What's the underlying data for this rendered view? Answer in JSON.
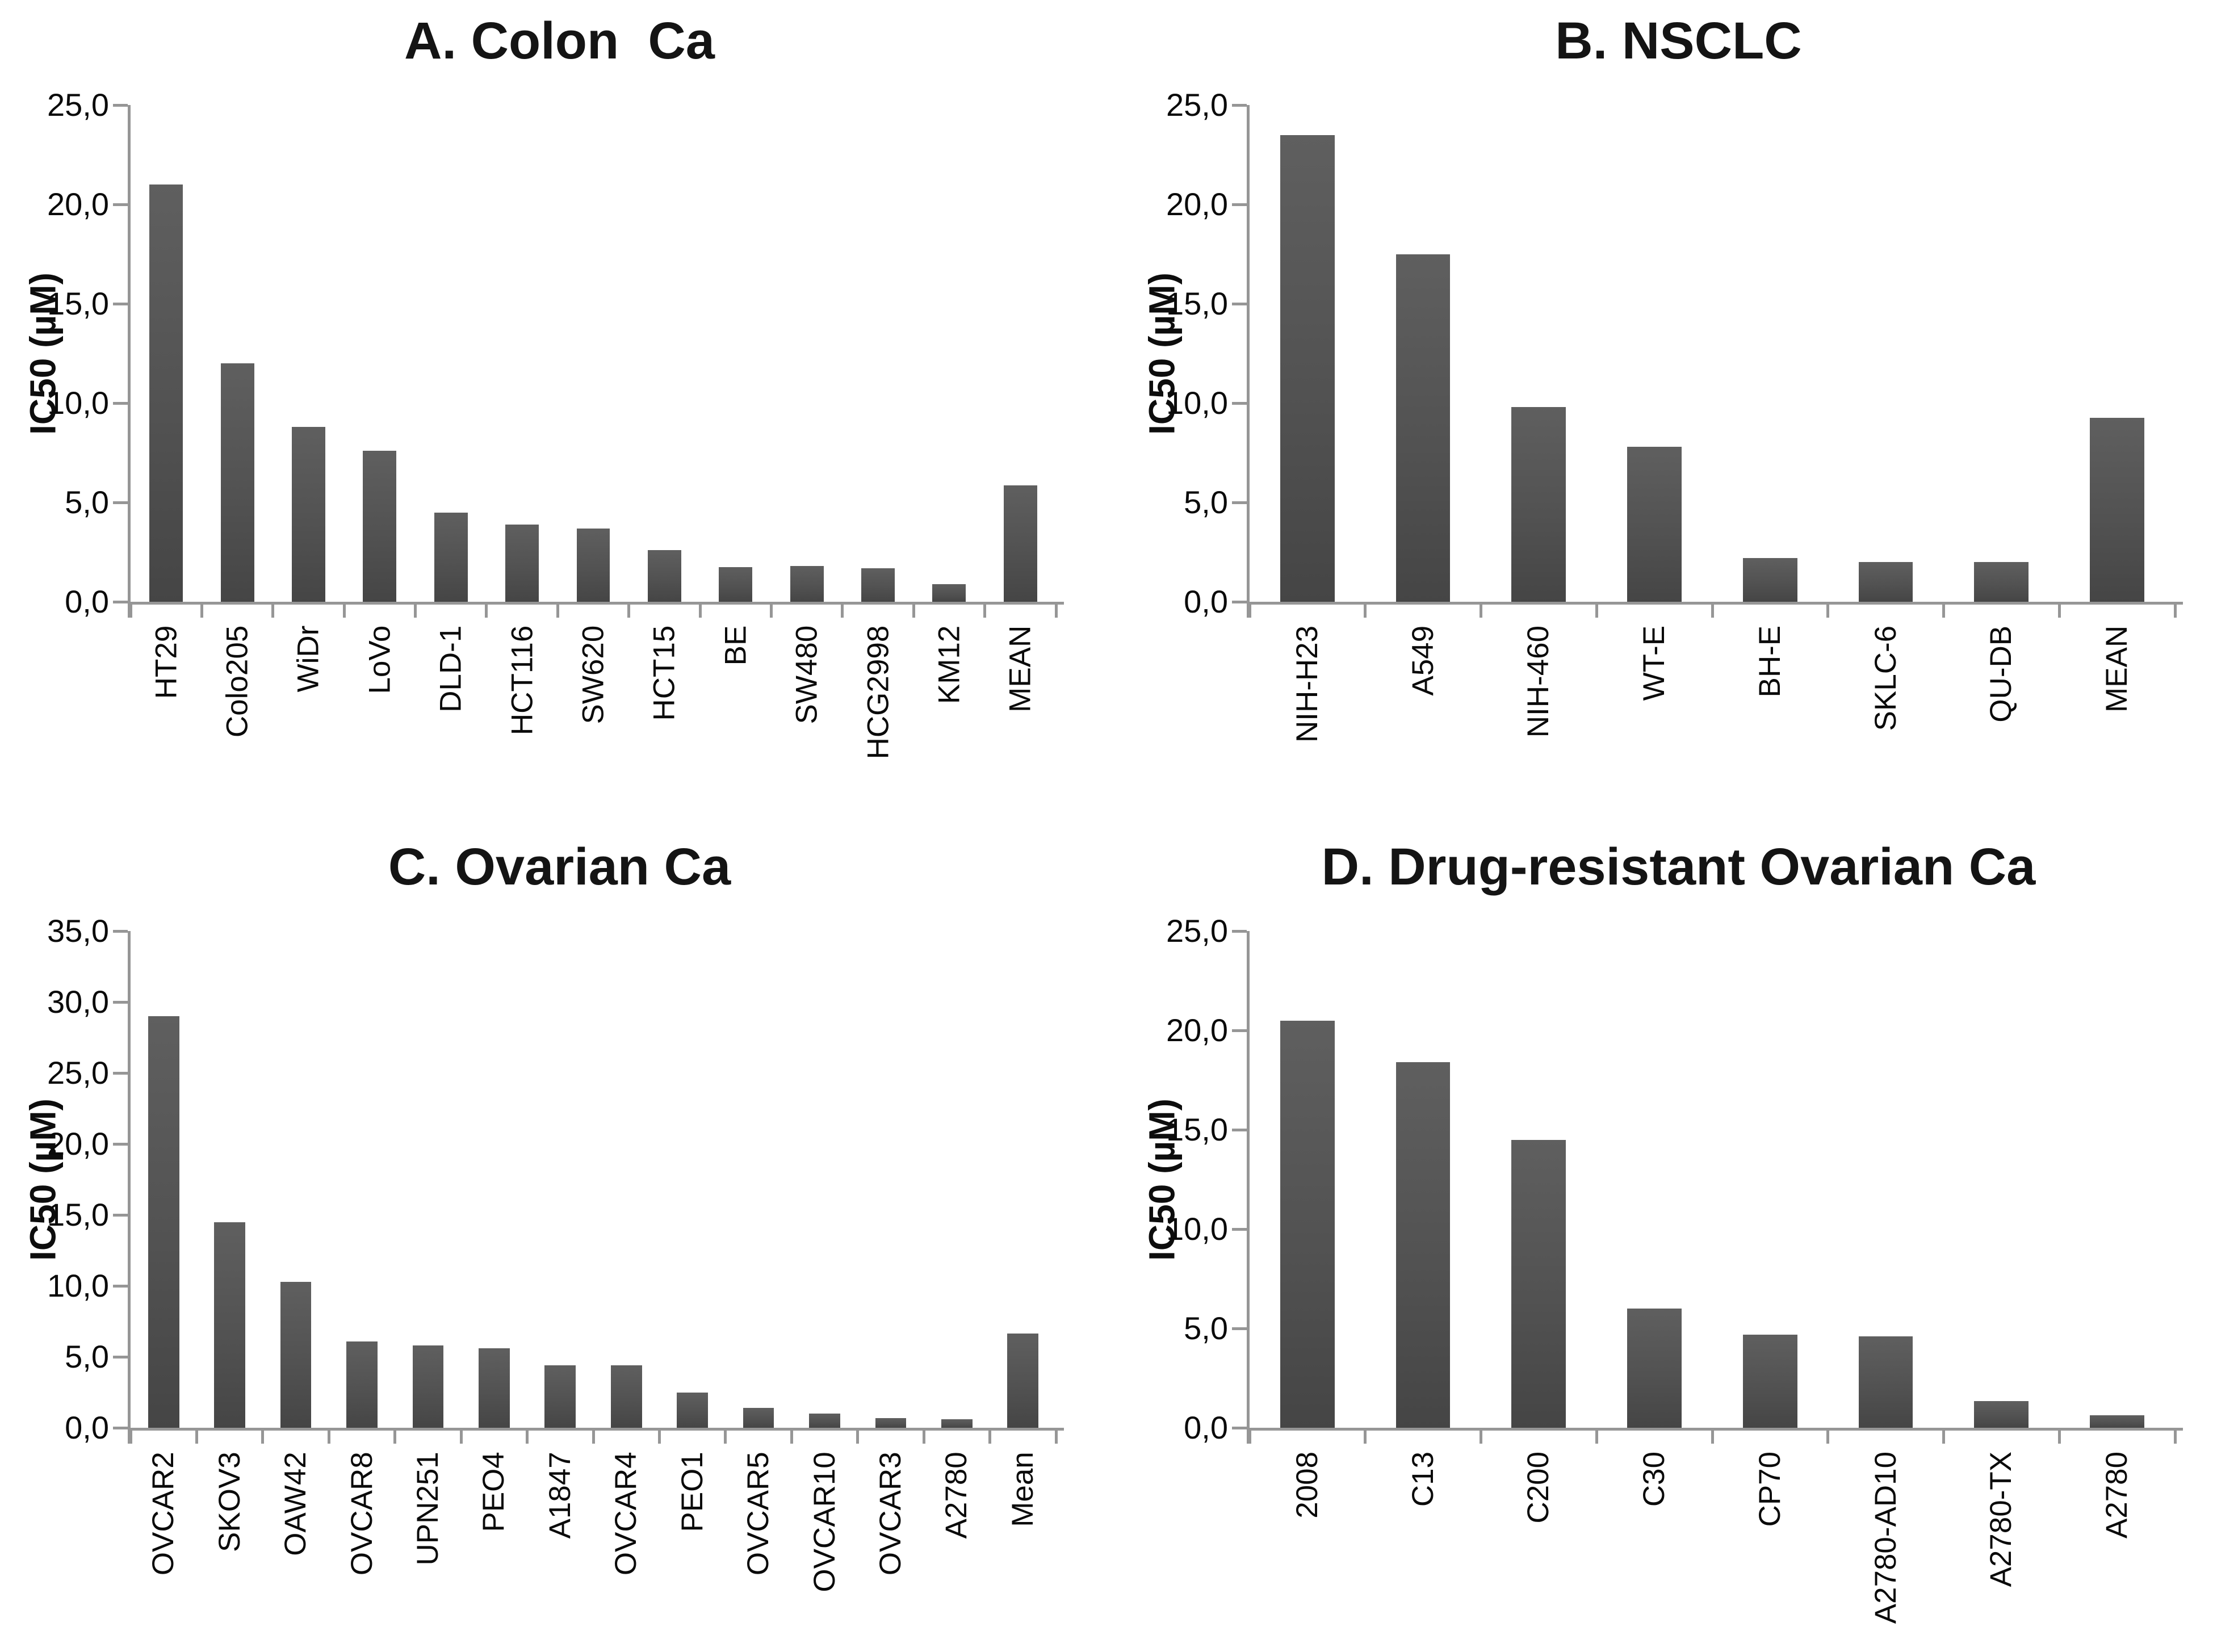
{
  "figure": {
    "background": "#ffffff",
    "bar_color_top": "#5f5f5f",
    "bar_color_bottom": "#454545",
    "axis_color": "#969696",
    "text_color": "#0d0d0d",
    "decimal_separator": ","
  },
  "chart_data": [
    {
      "type": "bar",
      "panel": "A",
      "title": "A. Colon  Ca",
      "ylabel": "IC50 (µM)",
      "xlabel": "",
      "ylim": [
        0,
        25
      ],
      "ytick_step": 5,
      "yticks": [
        "0,0",
        "5,0",
        "10,0",
        "15,0",
        "20,0",
        "25,0"
      ],
      "grid": false,
      "legend": null,
      "categories": [
        "HT29",
        "Colo205",
        "WiDr",
        "LoVo",
        "DLD-1",
        "HCT116",
        "SW620",
        "HCT15",
        "BE",
        "SW480",
        "HCG2998",
        "KM12",
        "MEAN"
      ],
      "values": [
        21.0,
        12.0,
        8.8,
        7.6,
        4.5,
        3.9,
        3.7,
        2.6,
        1.75,
        1.8,
        1.7,
        0.9,
        5.85
      ]
    },
    {
      "type": "bar",
      "panel": "B",
      "title": "B. NSCLC",
      "ylabel": "IC50 (µM)",
      "xlabel": "",
      "ylim": [
        0,
        25
      ],
      "ytick_step": 5,
      "yticks": [
        "0,0",
        "5,0",
        "10,0",
        "15,0",
        "20,0",
        "25,0"
      ],
      "grid": false,
      "legend": null,
      "categories": [
        "NIH-H23",
        "A549",
        "NIH-460",
        "WT-E",
        "BH-E",
        "SKLC-6",
        "QU-DB",
        "MEAN"
      ],
      "values": [
        23.5,
        17.5,
        9.8,
        7.8,
        2.2,
        2.0,
        2.0,
        9.25
      ]
    },
    {
      "type": "bar",
      "panel": "C",
      "title": "C. Ovarian Ca",
      "ylabel": "IC50 (µM)",
      "xlabel": "",
      "ylim": [
        0,
        35
      ],
      "ytick_step": 5,
      "yticks": [
        "0,0",
        "5,0",
        "10,0",
        "15,0",
        "20,0",
        "25,0",
        "30,0",
        "35,0"
      ],
      "grid": false,
      "legend": null,
      "categories": [
        "OVCAR2",
        "SKOV3",
        "OAW42",
        "OVCAR8",
        "UPN251",
        "PEO4",
        "A1847",
        "OVCAR4",
        "PEO1",
        "OVCAR5",
        "OVCAR10",
        "OVCAR3",
        "A2780",
        "Mean"
      ],
      "values": [
        29.0,
        14.5,
        10.3,
        6.1,
        5.8,
        5.6,
        4.4,
        4.4,
        2.5,
        1.4,
        1.0,
        0.7,
        0.6,
        6.65
      ]
    },
    {
      "type": "bar",
      "panel": "D",
      "title": "D. Drug-resistant Ovarian Ca",
      "ylabel": "IC50 (µM)",
      "xlabel": "",
      "ylim": [
        0,
        25
      ],
      "ytick_step": 5,
      "yticks": [
        "0,0",
        "5,0",
        "10,0",
        "15,0",
        "20,0",
        "25,0"
      ],
      "grid": false,
      "legend": null,
      "categories": [
        "2008",
        "C13",
        "C200",
        "C30",
        "CP70",
        "A2780-AD10",
        "A2780-TX",
        "A2780"
      ],
      "values": [
        20.5,
        18.4,
        14.5,
        6.0,
        4.7,
        4.6,
        1.35,
        0.63
      ]
    }
  ]
}
